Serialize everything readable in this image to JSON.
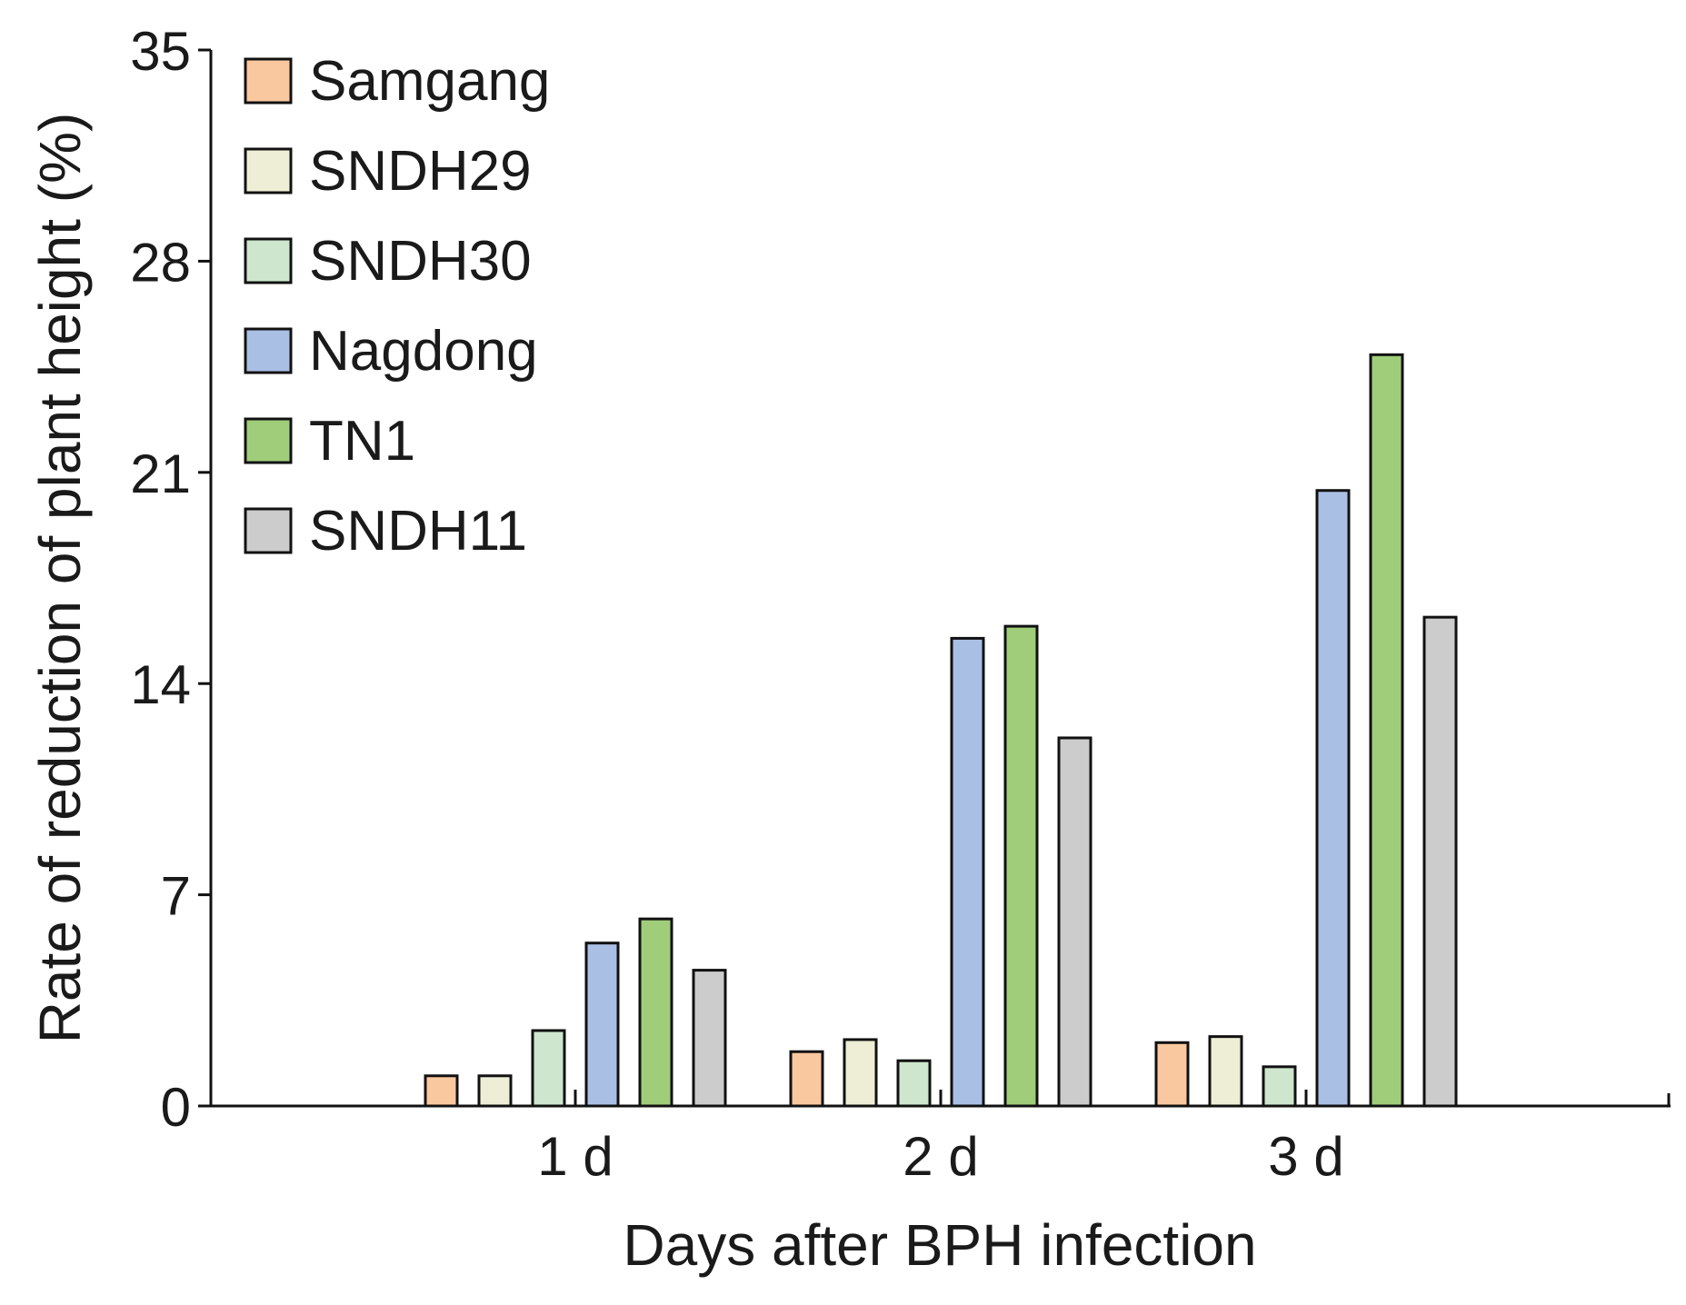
{
  "chart_data": {
    "type": "bar",
    "title": "",
    "xlabel": "Days after BPH infection",
    "ylabel": "Rate of reduction of plant height (%)",
    "categories": [
      "1 d",
      "2 d",
      "3 d"
    ],
    "ylim": [
      0,
      35
    ],
    "yticks": [
      "0",
      "7",
      "14",
      "21",
      "28",
      "35"
    ],
    "grid": false,
    "legend_position": "top-left",
    "series": [
      {
        "name": "Samgang",
        "color": "#FAC89E",
        "values": [
          1.0,
          1.8,
          2.1
        ]
      },
      {
        "name": "SNDH29",
        "color": "#EEEED6",
        "values": [
          1.0,
          2.2,
          2.3
        ]
      },
      {
        "name": "SNDH30",
        "color": "#CDE6CD",
        "values": [
          2.5,
          1.5,
          1.3
        ]
      },
      {
        "name": "Nagdong",
        "color": "#AABFE4",
        "values": [
          5.4,
          15.5,
          20.4
        ]
      },
      {
        "name": "TN1",
        "color": "#9FCD7A",
        "values": [
          6.2,
          15.9,
          24.9
        ]
      },
      {
        "name": "SNDH11",
        "color": "#CCCCCC",
        "values": [
          4.5,
          12.2,
          16.2
        ]
      }
    ]
  }
}
